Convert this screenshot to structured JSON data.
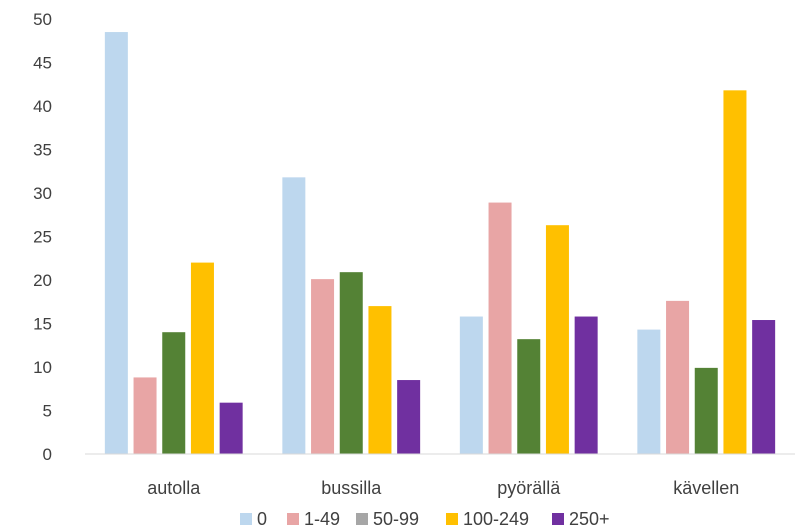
{
  "chart_data": {
    "type": "bar",
    "categories": [
      "autolla",
      "bussilla",
      "pyörällä",
      "kävellen"
    ],
    "series": [
      {
        "name": "0",
        "color": "#bdd7ee",
        "values": [
          48.5,
          31.8,
          15.8,
          14.3
        ]
      },
      {
        "name": "1-49",
        "color": "#e8a5a5",
        "values": [
          8.8,
          20.1,
          28.9,
          17.6
        ]
      },
      {
        "name": "50-99",
        "color": "#548235",
        "values": [
          14.0,
          20.9,
          13.2,
          9.9
        ]
      },
      {
        "name": "100-249",
        "color": "#ffc000",
        "values": [
          22.0,
          17.0,
          26.3,
          41.8
        ]
      },
      {
        "name": "250+",
        "color": "#7030a0",
        "values": [
          5.9,
          8.5,
          15.8,
          15.4
        ]
      }
    ],
    "legend_marker_color_50_99": "#a6a6a6",
    "ylim": [
      0,
      50
    ],
    "yticks": [
      0,
      5,
      10,
      15,
      20,
      25,
      30,
      35,
      40,
      45,
      50
    ],
    "grid": false,
    "legend": "bottom",
    "title": "",
    "xlabel": "",
    "ylabel": ""
  }
}
